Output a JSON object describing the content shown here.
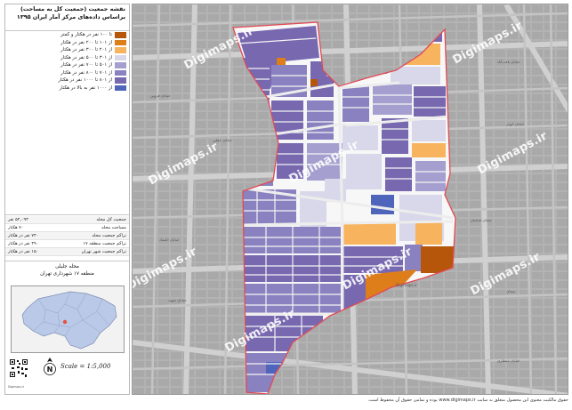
{
  "title": {
    "line1": "نقشه جمعیت (جمعیت کل به مساحت)",
    "line2": "براساس داده‌های مرکز آمار ایران ۱۳۹۵"
  },
  "legend": [
    {
      "label": "تا ۱۰۰ نفر در هکتار و کمتر",
      "color": "#b5560b"
    },
    {
      "label": "از ۱۰۱ تا ۲۰۰ نفر در هکتار",
      "color": "#dd7e1a"
    },
    {
      "label": "از ۲۰۱ تا ۳۰۰ نفر در هکتار",
      "color": "#f7b35d"
    },
    {
      "label": "از ۳۰۱ تا ۵۰۰ نفر در هکتار",
      "color": "#d8d8ea"
    },
    {
      "label": "از ۵۰۱ تا ۷۰۰ نفر در هکتار",
      "color": "#a59fcf"
    },
    {
      "label": "از ۷۰۱ تا ۸۰۰ نفر در هکتار",
      "color": "#8a82c0"
    },
    {
      "label": "از ۸۰۱ تا ۱۰۰۰ نفر در هکتار",
      "color": "#7768b0"
    },
    {
      "label": "از ۱۰۰۰ نفر به بالا در هکتار",
      "color": "#4f64bb"
    }
  ],
  "stats": [
    {
      "label": "جمعیت کل محله",
      "value": "۵۲,۰۹۳ نفر"
    },
    {
      "label": "مساحت محله",
      "value": "۷۰ هکتار"
    },
    {
      "label": "تراکم جمعیت محله",
      "value": "۷۴۰ نفر در هکتار"
    },
    {
      "label": "تراکم جمعیت منطقه ۱۷",
      "value": "۳۹۰ نفر در هکتار"
    },
    {
      "label": "تراکم جمعیت شهر تهران",
      "value": "۱۵۰ نفر در هکتار"
    }
  ],
  "locality": {
    "name": "محله جلیلی",
    "region": "منطقه ۱۷ شهرداری تهران"
  },
  "scale": "Scale = 1:5,000",
  "map_footer_small": "Digimaps.ir",
  "watermark": "Digimaps.ir",
  "footer_text": "حقوق مالکیت معنوی این محصول متعلق به سایت www.digimaps.ir بوده و تمامی حقوق آن محفوظ است.",
  "street_labels": [
    {
      "text": "خیابان قزوین"
    },
    {
      "text": "خیابان جلیلی"
    },
    {
      "text": "خیابان یافت‌آباد"
    },
    {
      "text": "خیابان ابوذر"
    },
    {
      "text": "خیابان فدائیان"
    },
    {
      "text": "خیابان اعتماد"
    },
    {
      "text": "میدان"
    },
    {
      "text": "خیابان شهید"
    },
    {
      "text": "خیابان منتظری"
    },
    {
      "text": "Digimaps.ir"
    }
  ]
}
